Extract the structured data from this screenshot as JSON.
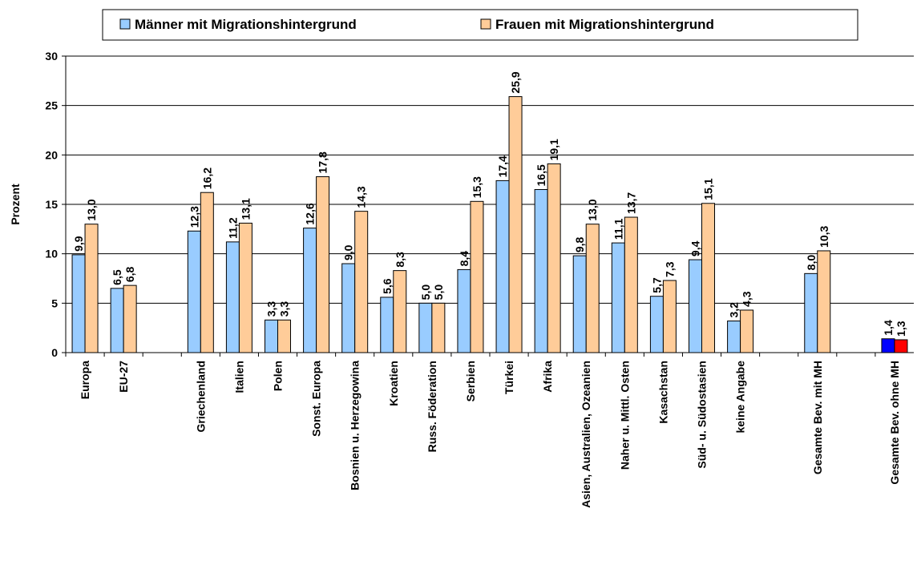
{
  "chart_data": {
    "type": "bar",
    "y_label": "Prozent",
    "categories": [
      "Europa",
      "EU-27",
      null,
      "Griechenland",
      "Italien",
      "Polen",
      "Sonst. Europa",
      "Bosnien u. Herzegowina",
      "Kroatien",
      "Russ. Föderation",
      "Serbien",
      "Türkei",
      "Afrika",
      "Asien, Australien, Ozeanien",
      "Naher u. Mittl. Osten",
      "Kasachstan",
      "Süd- u. Südostasien",
      "keine Angabe",
      null,
      "Gesamte Bev. mit MH",
      null,
      "Gesamte Bev. ohne MH"
    ],
    "series": [
      {
        "name": "Männer mit Migrationshintergrund",
        "color": "#99ccff",
        "values": [
          9.9,
          6.5,
          null,
          12.3,
          11.2,
          3.3,
          12.6,
          9.0,
          5.6,
          5.0,
          8.4,
          17.4,
          16.5,
          9.8,
          11.1,
          5.7,
          9.4,
          3.2,
          null,
          8.0,
          null,
          1.4
        ],
        "value_labels": [
          "9,9",
          "6,5",
          null,
          "12,3",
          "11,2",
          "3,3",
          "12,6",
          "9,0",
          "5,6",
          "5,0",
          "8,4",
          "17,4",
          "16,5",
          "9,8",
          "11,1",
          "5,7",
          "9,4",
          "3,2",
          null,
          "8,0",
          null,
          "1,4"
        ],
        "highlight": {
          "index": 21,
          "color": "#0000ff"
        }
      },
      {
        "name": "Frauen mit Migrationshintergrund",
        "color": "#ffcc99",
        "values": [
          13.0,
          6.8,
          null,
          16.2,
          13.1,
          3.3,
          17.8,
          14.3,
          8.3,
          5.0,
          15.3,
          25.9,
          19.1,
          13.0,
          13.7,
          7.3,
          15.1,
          4.3,
          null,
          10.3,
          null,
          1.3
        ],
        "value_labels": [
          "13,0",
          "6,8",
          null,
          "16,2",
          "13,1",
          "3,3",
          "17,8",
          "14,3",
          "8,3",
          "5,0",
          "15,3",
          "25,9",
          "19,1",
          "13,0",
          "13,7",
          "7,3",
          "15,1",
          "4,3",
          null,
          "10,3",
          null,
          "1,3"
        ],
        "highlight": {
          "index": 21,
          "color": "#ff0000"
        }
      }
    ],
    "ylim": [
      0,
      30
    ],
    "yticks": [
      0,
      5,
      10,
      15,
      20,
      25,
      30
    ],
    "grid": true,
    "legend": "top"
  }
}
